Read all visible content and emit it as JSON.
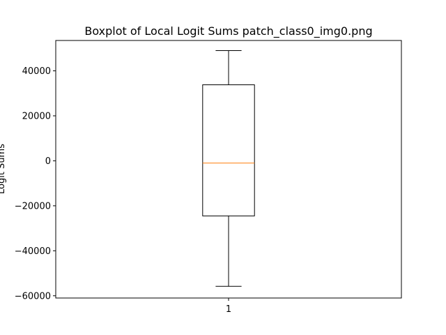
{
  "chart_data": {
    "type": "boxplot",
    "title": "Boxplot of Local Logit Sums patch_class0_img0.png",
    "xlabel": "",
    "ylabel": "Logit Sums",
    "categories": [
      "1"
    ],
    "boxes": [
      {
        "category": "1",
        "whisker_low": -55800,
        "q1": -24500,
        "median": -1000,
        "q3": 33800,
        "whisker_high": 49000
      }
    ],
    "yticks": [
      -60000,
      -40000,
      -20000,
      0,
      20000,
      40000
    ],
    "ytick_labels": [
      "−60000",
      "−40000",
      "−20000",
      "0",
      "20000",
      "40000"
    ],
    "ylim": [
      -61000,
      53500
    ],
    "grid": false,
    "colors": {
      "box": "#000000",
      "median": "#ff7f0e",
      "whisker": "#000000"
    }
  }
}
